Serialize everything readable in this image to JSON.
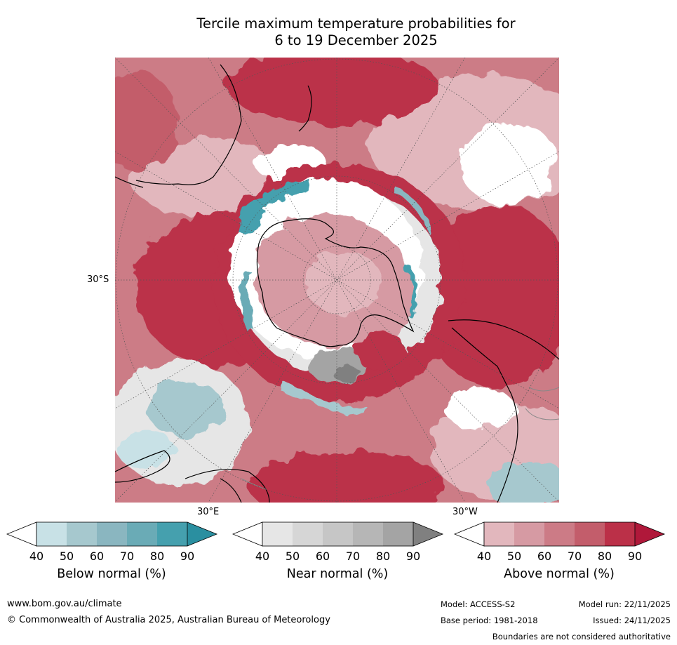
{
  "title": {
    "line1": "Tercile maximum temperature probabilities for",
    "line2": "6 to 19 December 2025"
  },
  "map": {
    "projection": "south polar stereographic",
    "lat_label": "30°S",
    "lon_label_left": "30°E",
    "lon_label_right": "30°W"
  },
  "colorbars": [
    {
      "name": "below",
      "title": "Below normal (%)",
      "ticks": [
        "40",
        "50",
        "60",
        "70",
        "80",
        "90"
      ],
      "colors": [
        "#ffffff",
        "#c8e1e6",
        "#a6c8ce",
        "#8ab6c0",
        "#6aabb6",
        "#45a0ae",
        "#2a8fa0"
      ]
    },
    {
      "name": "near",
      "title": "Near normal (%)",
      "ticks": [
        "40",
        "50",
        "60",
        "70",
        "80",
        "90"
      ],
      "colors": [
        "#ffffff",
        "#e6e6e6",
        "#d6d6d6",
        "#c6c6c6",
        "#b6b6b6",
        "#a4a4a4",
        "#808080"
      ]
    },
    {
      "name": "above",
      "title": "Above normal (%)",
      "ticks": [
        "40",
        "50",
        "60",
        "70",
        "80",
        "90"
      ],
      "colors": [
        "#ffffff",
        "#e2b7bd",
        "#d69aa3",
        "#cc7b86",
        "#c35d6b",
        "#bb3048",
        "#b0183a"
      ]
    }
  ],
  "footer": {
    "website": "www.bom.gov.au/climate",
    "copyright": "© Commonwealth of Australia 2025, Australian Bureau of Meteorology",
    "model": "Model: ACCESS-S2",
    "model_run": "Model run: 22/11/2025",
    "base_period": "Base period: 1981-2018",
    "issued": "Issued: 24/11/2025",
    "disclaimer": "Boundaries are not considered authoritative"
  }
}
